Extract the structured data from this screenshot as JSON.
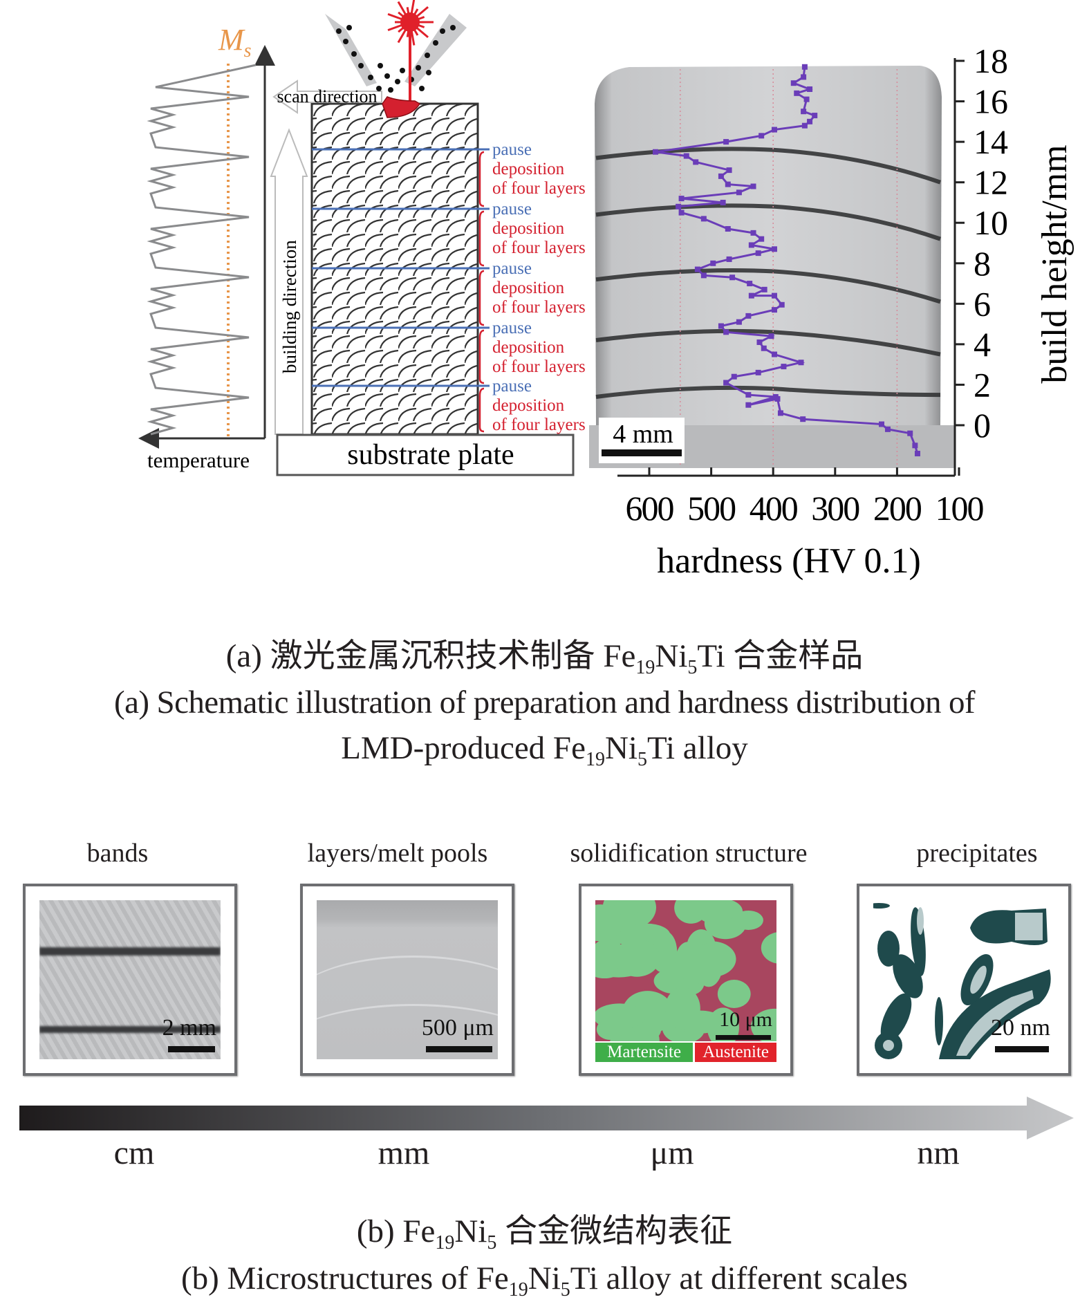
{
  "schematic": {
    "ms_label": "M",
    "ms_sub": "s",
    "temperature_label": "temperature",
    "scan_direction_label": "scan direction",
    "building_direction_label": "building direction",
    "substrate_label": "substrate plate",
    "stages": [
      {
        "pause": "pause",
        "line1": "deposition",
        "line2": "of four layers"
      },
      {
        "pause": "pause",
        "line1": "deposition",
        "line2": "of four layers"
      },
      {
        "pause": "pause",
        "line1": "deposition",
        "line2": "of four layers"
      },
      {
        "pause": "pause",
        "line1": "deposition",
        "line2": "of four layers"
      },
      {
        "pause": "pause",
        "line1": "deposition",
        "line2": "of four layers"
      }
    ],
    "colors": {
      "pause": "#4a6fb5",
      "deposition": "#d4202f",
      "ms_line": "#e8964a",
      "laser": "#e0202a"
    }
  },
  "chart_data": {
    "type": "line",
    "xlabel": "hardness (HV 0.1)",
    "ylabel": "build height/mm",
    "x_ticks": [
      600,
      500,
      400,
      300,
      200,
      100
    ],
    "y_ticks": [
      0,
      2,
      4,
      6,
      8,
      10,
      12,
      14,
      16,
      18
    ],
    "xlim": [
      650,
      100
    ],
    "x_reversed": true,
    "ylim": [
      -2,
      18
    ],
    "scale_bar_label": "4 mm",
    "series_color": "#6a3db8",
    "points": [
      [
        167,
        -1.4
      ],
      [
        171,
        -1.0
      ],
      [
        179,
        -0.4
      ],
      [
        215,
        -0.2
      ],
      [
        225,
        0.05
      ],
      [
        352,
        0.3
      ],
      [
        388,
        0.6
      ],
      [
        393,
        1.3
      ],
      [
        440,
        1.0
      ],
      [
        396,
        1.4
      ],
      [
        440,
        1.5
      ],
      [
        476,
        2.1
      ],
      [
        463,
        2.4
      ],
      [
        424,
        2.6
      ],
      [
        383,
        2.9
      ],
      [
        355,
        3.1
      ],
      [
        398,
        3.5
      ],
      [
        415,
        3.8
      ],
      [
        422,
        4.1
      ],
      [
        403,
        4.4
      ],
      [
        476,
        4.6
      ],
      [
        484,
        4.9
      ],
      [
        455,
        5.1
      ],
      [
        440,
        5.4
      ],
      [
        398,
        5.7
      ],
      [
        386,
        5.95
      ],
      [
        398,
        6.4
      ],
      [
        435,
        6.4
      ],
      [
        414,
        6.7
      ],
      [
        438,
        7.0
      ],
      [
        466,
        7.3
      ],
      [
        512,
        7.4
      ],
      [
        522,
        7.7
      ],
      [
        497,
        8.0
      ],
      [
        471,
        8.2
      ],
      [
        424,
        8.5
      ],
      [
        398,
        8.7
      ],
      [
        435,
        8.9
      ],
      [
        419,
        9.2
      ],
      [
        432,
        9.5
      ],
      [
        473,
        9.7
      ],
      [
        512,
        10.2
      ],
      [
        548,
        10.5
      ],
      [
        553,
        10.8
      ],
      [
        481,
        11.0
      ],
      [
        548,
        11.2
      ],
      [
        455,
        11.5
      ],
      [
        432,
        11.8
      ],
      [
        473,
        11.9
      ],
      [
        484,
        12.3
      ],
      [
        471,
        12.6
      ],
      [
        525,
        13.0
      ],
      [
        540,
        13.3
      ],
      [
        590,
        13.5
      ],
      [
        476,
        14.0
      ],
      [
        419,
        14.3
      ],
      [
        398,
        14.6
      ],
      [
        349,
        14.8
      ],
      [
        341,
        15.0
      ],
      [
        333,
        15.3
      ],
      [
        351,
        15.5
      ],
      [
        346,
        16.1
      ],
      [
        362,
        16.4
      ],
      [
        341,
        16.6
      ],
      [
        367,
        16.9
      ],
      [
        351,
        17.2
      ],
      [
        349,
        17.7
      ]
    ]
  },
  "caption_a": {
    "cn": {
      "p1": "(a) 激光金属沉积技术制备 Fe",
      "s1": "19",
      "p2": "Ni",
      "s2": "5",
      "p3": "Ti 合金样品"
    },
    "en1": "(a) Schematic illustration of preparation and hardness distribution of",
    "en2": {
      "p1": "LMD-produced Fe",
      "s1": "19",
      "p2": "Ni",
      "s2": "5",
      "p3": "Ti alloy"
    }
  },
  "panels": [
    {
      "title": "bands",
      "scale": "2 mm"
    },
    {
      "title": "layers/melt pools",
      "scale": "500 μm"
    },
    {
      "title": "solidification structure",
      "scale": "10 μm",
      "legend": [
        {
          "label": "Martensite",
          "color": "#3fae49"
        },
        {
          "label": "Austenite",
          "color": "#e1232b"
        }
      ]
    },
    {
      "title": "precipitates",
      "scale": "20 nm"
    }
  ],
  "scale_axis": [
    "cm",
    "mm",
    "μm",
    "nm"
  ],
  "caption_b": {
    "cn": {
      "p1": "(b) Fe",
      "s1": "19",
      "p2": "Ni",
      "s2": "5",
      "p3": " 合金微结构表征"
    },
    "en": {
      "p1": "(b) Microstructures of Fe",
      "s1": "19",
      "p2": "Ni",
      "s2": "5",
      "p3": "Ti alloy at different scales"
    }
  }
}
